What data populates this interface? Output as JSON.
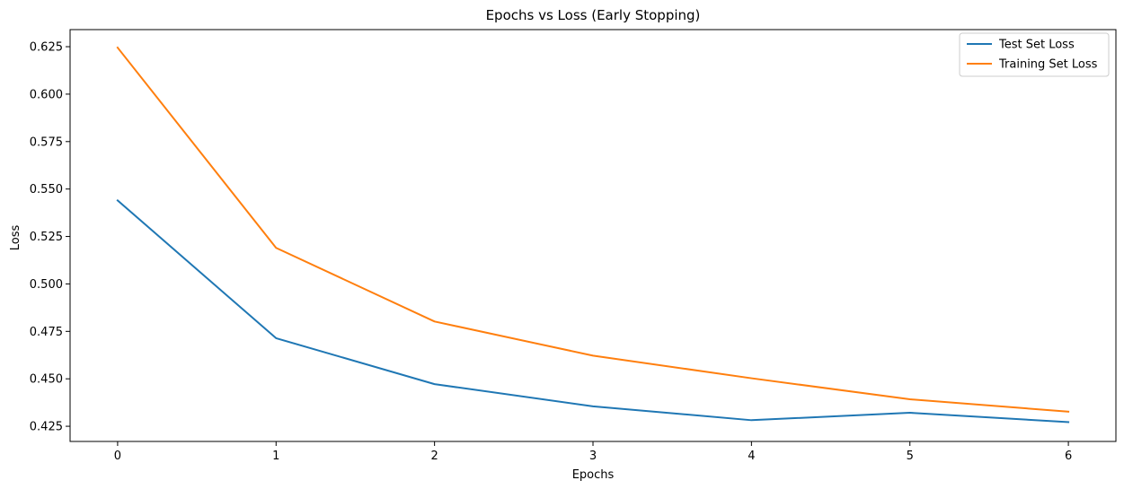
{
  "chart_data": {
    "type": "line",
    "title": "Epochs vs Loss (Early Stopping)",
    "xlabel": "Epochs",
    "ylabel": "Loss",
    "x": [
      0,
      1,
      2,
      3,
      4,
      5,
      6
    ],
    "xlim": [
      -0.3,
      6.3
    ],
    "ylim": [
      0.417,
      0.634
    ],
    "xticks": [
      0,
      1,
      2,
      3,
      4,
      5,
      6
    ],
    "yticks": [
      0.425,
      0.45,
      0.475,
      0.5,
      0.525,
      0.55,
      0.575,
      0.6,
      0.625
    ],
    "ytick_labels": [
      "0.425",
      "0.450",
      "0.475",
      "0.500",
      "0.525",
      "0.550",
      "0.575",
      "0.600",
      "0.625"
    ],
    "grid": false,
    "legend_position": "top-right",
    "series": [
      {
        "name": "Test Set Loss",
        "color": "#1f77b4",
        "values": [
          0.544,
          0.4714,
          0.4472,
          0.4355,
          0.4282,
          0.4321,
          0.4272
        ]
      },
      {
        "name": "Training Set Loss",
        "color": "#ff7f0e",
        "values": [
          0.6245,
          0.519,
          0.4802,
          0.4622,
          0.4503,
          0.4392,
          0.4327
        ]
      }
    ]
  }
}
